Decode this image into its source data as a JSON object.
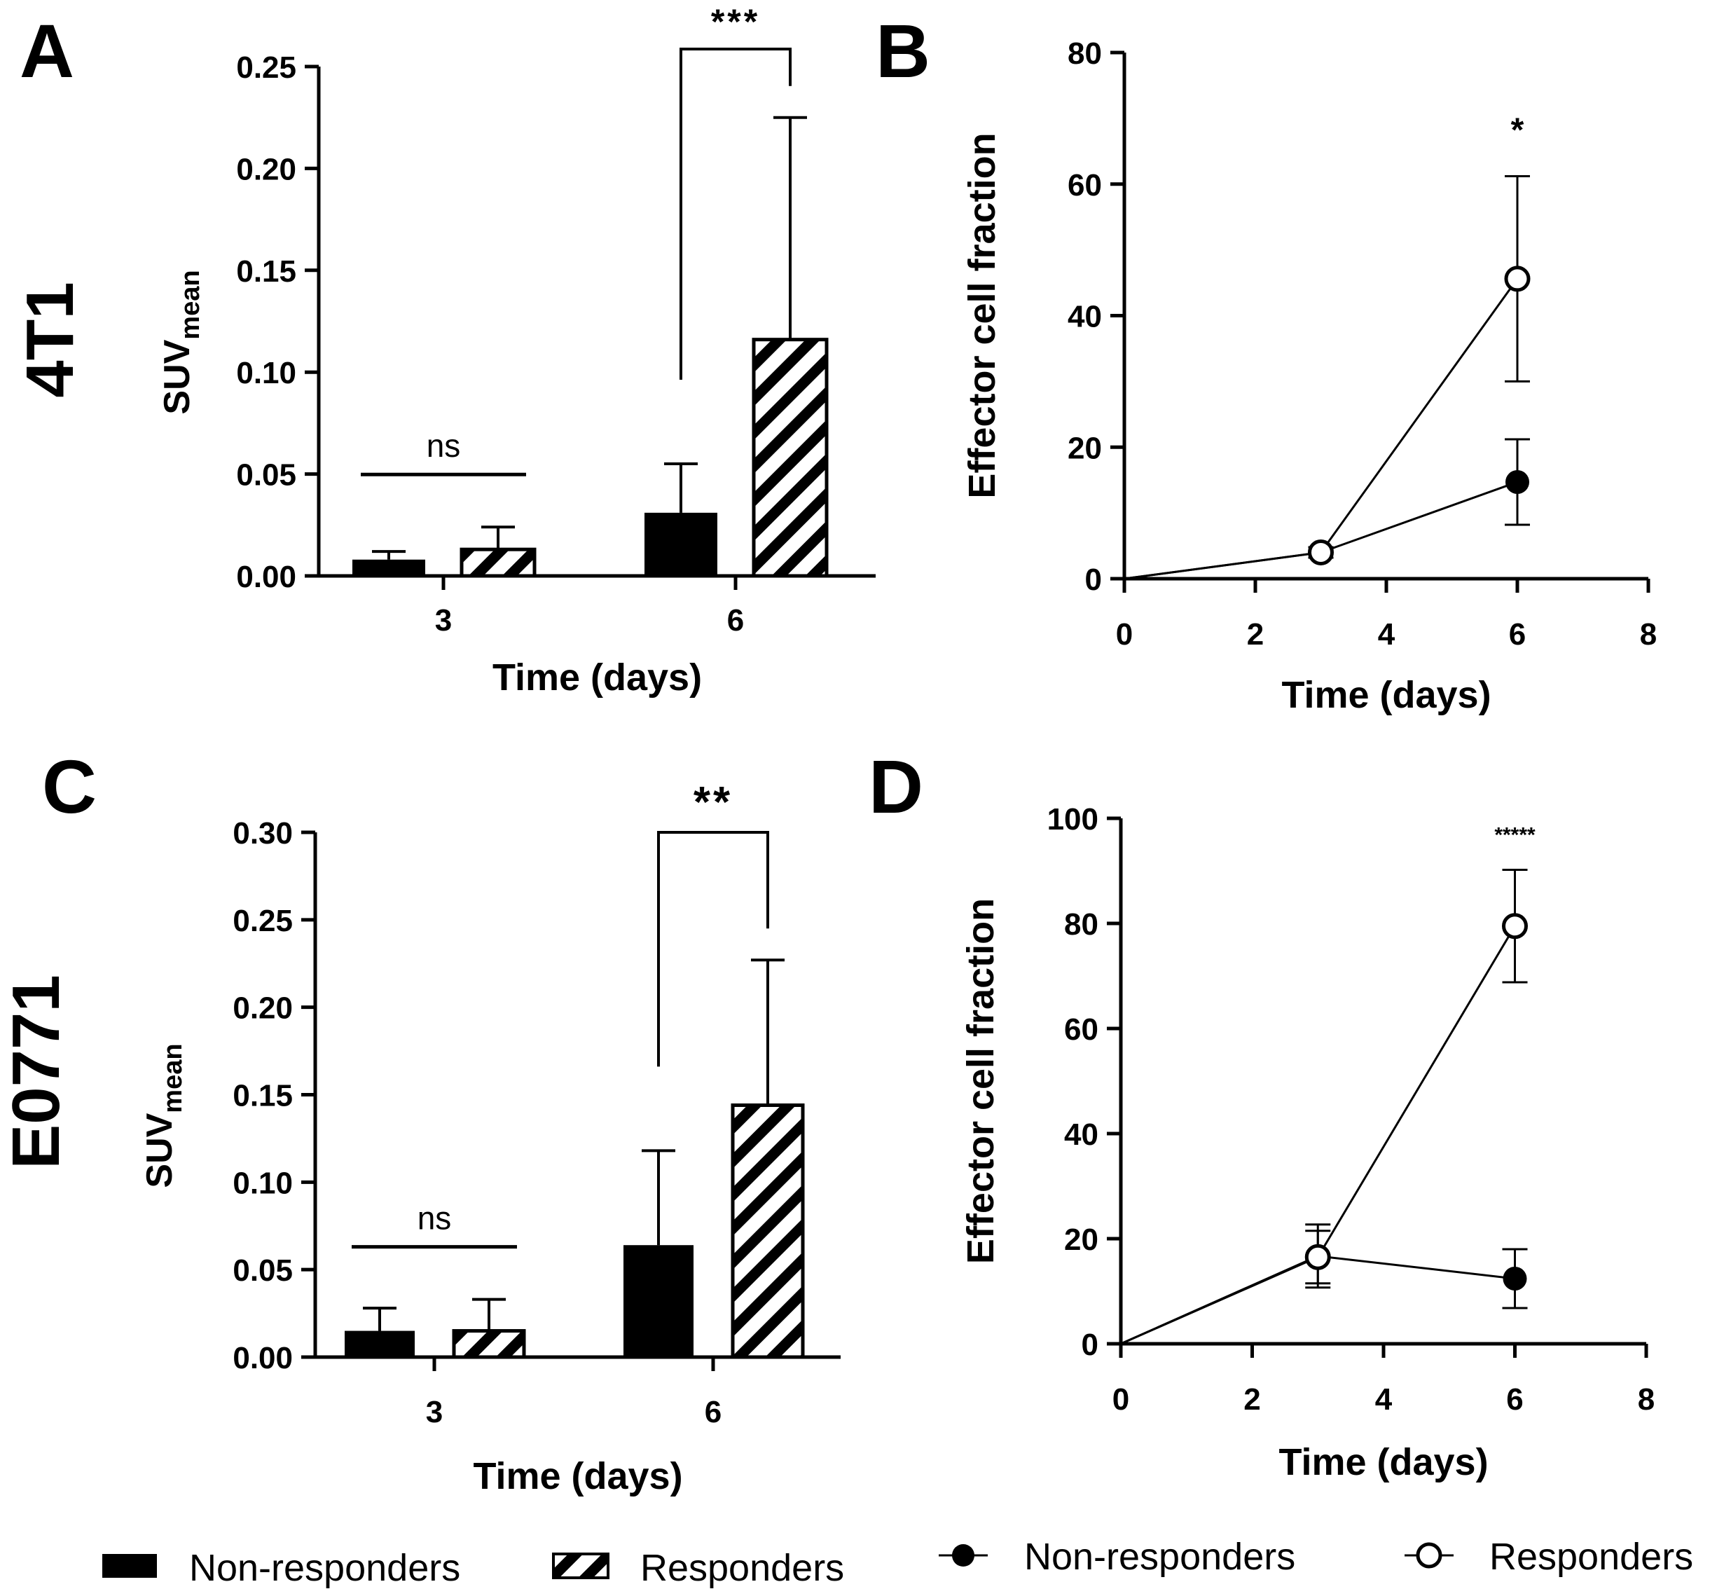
{
  "colors": {
    "ink": "#000000",
    "background": "#ffffff"
  },
  "row_labels": [
    "4T1",
    "E0771"
  ],
  "legend": {
    "bar_non_responders": "Non-responders",
    "bar_responders": "Responders",
    "line_non_responders": "Non-responders",
    "line_responders": "Responders"
  },
  "chart_data": [
    {
      "panel": "A",
      "type": "bar",
      "title": "",
      "xlabel": "Time (days)",
      "ylabel": "SUV",
      "ylabel_sub": "mean",
      "categories": [
        "3",
        "6"
      ],
      "ylim": [
        0,
        0.25
      ],
      "yticks": [
        0.0,
        0.05,
        0.1,
        0.15,
        0.2,
        0.25
      ],
      "ytick_labels": [
        "0.00",
        "0.05",
        "0.10",
        "0.15",
        "0.20",
        "0.25"
      ],
      "series": [
        {
          "name": "Non-responders",
          "fill": "solid",
          "values": [
            0.008,
            0.031
          ],
          "error": [
            0.004,
            0.024
          ]
        },
        {
          "name": "Responders",
          "fill": "hatched",
          "values": [
            0.013,
            0.116
          ],
          "error": [
            0.011,
            0.109
          ]
        }
      ],
      "annotations": [
        {
          "category": "3",
          "text": "ns",
          "style": "line"
        },
        {
          "category": "6",
          "text": "***",
          "style": "bracket"
        }
      ]
    },
    {
      "panel": "B",
      "type": "line",
      "title": "",
      "xlabel": "Time (days)",
      "ylabel": "Effector cell fraction",
      "xlim": [
        0,
        8
      ],
      "ylim": [
        0,
        80
      ],
      "xticks": [
        0,
        2,
        4,
        6,
        8
      ],
      "yticks": [
        0,
        20,
        40,
        60,
        80
      ],
      "series": [
        {
          "name": "Non-responders",
          "marker": "filled",
          "x": [
            0,
            3,
            6
          ],
          "y": [
            0,
            4,
            14.7
          ],
          "error": [
            0,
            0.8,
            6.5
          ]
        },
        {
          "name": "Responders",
          "marker": "open",
          "x": [
            0,
            3,
            6
          ],
          "y": [
            0,
            4,
            45.6
          ],
          "error": [
            0,
            0.8,
            15.6
          ]
        }
      ],
      "annotations": [
        {
          "x": 6,
          "text": "*"
        }
      ]
    },
    {
      "panel": "C",
      "type": "bar",
      "title": "",
      "xlabel": "Time (days)",
      "ylabel": "SUV",
      "ylabel_sub": "mean",
      "categories": [
        "3",
        "6"
      ],
      "ylim": [
        0,
        0.3
      ],
      "yticks": [
        0.0,
        0.05,
        0.1,
        0.15,
        0.2,
        0.25,
        0.3
      ],
      "ytick_labels": [
        "0.00",
        "0.05",
        "0.10",
        "0.15",
        "0.20",
        "0.25",
        "0.30"
      ],
      "series": [
        {
          "name": "Non-responders",
          "fill": "solid",
          "values": [
            0.015,
            0.064
          ],
          "error": [
            0.013,
            0.054
          ]
        },
        {
          "name": "Responders",
          "fill": "hatched",
          "values": [
            0.015,
            0.144
          ],
          "error": [
            0.018,
            0.083
          ]
        }
      ],
      "annotations": [
        {
          "category": "3",
          "text": "ns",
          "style": "line"
        },
        {
          "category": "6",
          "text": "**",
          "style": "bracket"
        }
      ]
    },
    {
      "panel": "D",
      "type": "line",
      "title": "",
      "xlabel": "Time (days)",
      "ylabel": "Effector cell fraction",
      "xlim": [
        0,
        8
      ],
      "ylim": [
        0,
        100
      ],
      "xticks": [
        0,
        2,
        4,
        6,
        8
      ],
      "yticks": [
        0,
        20,
        40,
        60,
        80,
        100
      ],
      "series": [
        {
          "name": "Non-responders",
          "marker": "filled",
          "x": [
            0,
            3,
            6
          ],
          "y": [
            0,
            16.7,
            12.4
          ],
          "error": [
            0,
            6,
            5.6
          ]
        },
        {
          "name": "Responders",
          "marker": "open",
          "x": [
            0,
            3,
            6
          ],
          "y": [
            0,
            16.5,
            79.5
          ],
          "error": [
            0,
            5,
            10.7
          ]
        }
      ],
      "annotations": [
        {
          "x": 6,
          "text": "*****"
        }
      ]
    }
  ]
}
